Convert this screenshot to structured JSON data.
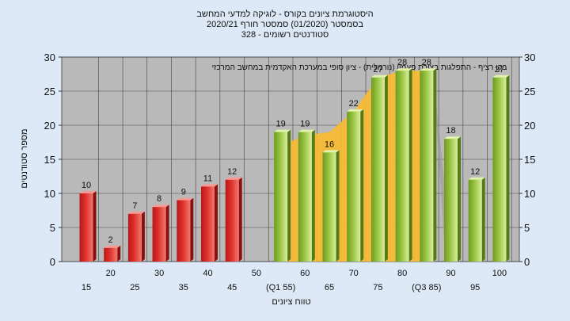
{
  "chart_data": {
    "type": "bar",
    "title_lines": [
      "היסטוגרמת ציונים בקורס - לוגיקה למדעי המחשב",
      "בסמסטר  (01/2020)  סמסטר חורף  2020/21",
      "סטודנטים רשומים - 328"
    ],
    "annotation": "בקו רציף - התפלגות בצורת פעמון (נורמלית) - ציון סופי במערכת האקדמית במחשב המרכזי",
    "xlabel": "טווח ציונים",
    "ylabel": "מספר סטודנטים",
    "ylim": [
      0,
      30
    ],
    "yticks": [
      0,
      5,
      10,
      15,
      20,
      25,
      30
    ],
    "categories": [
      "15",
      "20",
      "25",
      "30",
      "35",
      "40",
      "45",
      "50",
      "(Q1 55)",
      "60",
      "65",
      "70",
      "75",
      "80",
      "(Q3 85)",
      "90",
      "95",
      "100"
    ],
    "values": [
      10,
      2,
      7,
      8,
      9,
      11,
      12,
      null,
      19,
      19,
      16,
      22,
      27,
      28,
      28,
      18,
      12,
      27
    ],
    "bar_groups": [
      "fail",
      "fail",
      "fail",
      "fail",
      "fail",
      "fail",
      "fail",
      null,
      "pass",
      "pass",
      "pass",
      "pass",
      "pass",
      "pass",
      "pass",
      "pass",
      "pass",
      "pass"
    ],
    "colors": {
      "fail": "#e0302c",
      "pass": "#98c441",
      "band": "#f5b935",
      "plot_bg": "#b9b9b9",
      "page_bg": "#dde9f6"
    },
    "grid": true,
    "band_values": [
      18.5,
      19,
      22,
      27,
      28,
      28
    ]
  }
}
